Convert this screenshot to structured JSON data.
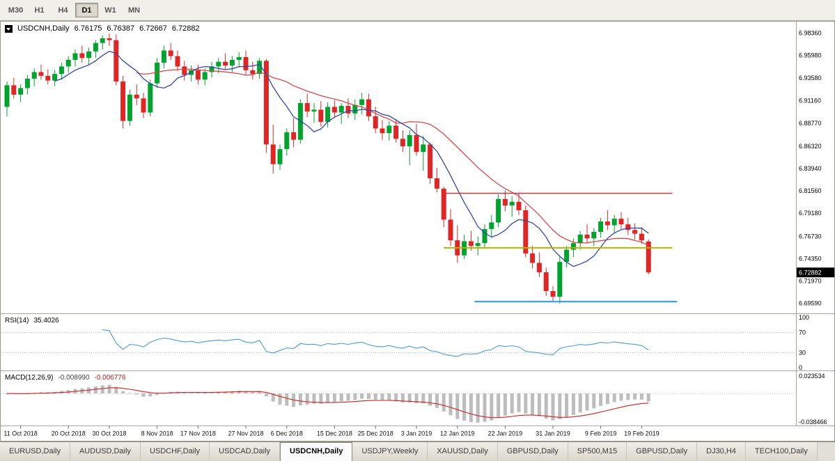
{
  "toolbar": {
    "timeframes": [
      {
        "label": "M30",
        "active": false
      },
      {
        "label": "H1",
        "active": false
      },
      {
        "label": "H4",
        "active": false
      },
      {
        "label": "D1",
        "active": true
      },
      {
        "label": "W1",
        "active": false
      },
      {
        "label": "MN",
        "active": false
      }
    ]
  },
  "chart": {
    "header": {
      "symbol_label": "USDCNH,Daily",
      "open": "6.76175",
      "high": "6.76387",
      "low": "6.72667",
      "close": "6.72882"
    }
  },
  "rsi_panel": {
    "label": "RSI(14)",
    "value": "35.4026"
  },
  "macd_panel": {
    "label": "MACD(12,26,9)",
    "main_value": "-0.008990",
    "signal_value": "-0.006776"
  },
  "tabs": [
    {
      "label": "EURUSD,Daily",
      "active": false
    },
    {
      "label": "AUDUSD,Daily",
      "active": false
    },
    {
      "label": "USDCHF,Daily",
      "active": false
    },
    {
      "label": "USDCAD,Daily",
      "active": false
    },
    {
      "label": "USDCNH,Daily",
      "active": true
    },
    {
      "label": "USDJPY,Weekly",
      "active": false
    },
    {
      "label": "XAUUSD,Daily",
      "active": false
    },
    {
      "label": "GBPUSD,Daily",
      "active": false
    },
    {
      "label": "SP500,M15",
      "active": false
    },
    {
      "label": "GBPUSD,Daily",
      "active": false
    },
    {
      "label": "DJ30,H4",
      "active": false
    },
    {
      "label": "TECH100,Daily",
      "active": false
    }
  ],
  "chart_data": {
    "type": "candlestick-ohlc",
    "symbol": "USDCNH",
    "timeframe": "Daily",
    "last_price": "6.72882",
    "y_axis": {
      "max": 6.995,
      "min": 6.686,
      "tick_labels": [
        "6.98360",
        "6.95980",
        "6.93580",
        "6.91160",
        "6.88770",
        "6.86320",
        "6.83940",
        "6.81560",
        "6.79180",
        "6.76730",
        "6.74350",
        "6.71970",
        "6.69590"
      ]
    },
    "x_tick_labels": [
      "11 Oct 2018",
      "20 Oct 2018",
      "30 Oct 2018",
      "8 Nov 2018",
      "17 Nov 2018",
      "27 Nov 2018",
      "6 Dec 2018",
      "15 Dec 2018",
      "25 Dec 2018",
      "3 Jan 2019",
      "12 Jan 2019",
      "22 Jan 2019",
      "31 Jan 2019",
      "9 Feb 2019",
      "19 Feb 2019"
    ],
    "x_tick_indices": [
      2,
      9,
      15,
      22,
      28,
      35,
      41,
      48,
      54,
      60,
      66,
      73,
      80,
      87,
      93
    ],
    "candles": [
      [
        6.905,
        6.932,
        6.895,
        6.928
      ],
      [
        6.928,
        6.936,
        6.914,
        6.918
      ],
      [
        6.918,
        6.929,
        6.91,
        6.925
      ],
      [
        6.925,
        6.939,
        6.918,
        6.935
      ],
      [
        6.935,
        6.946,
        6.927,
        6.942
      ],
      [
        6.942,
        6.95,
        6.934,
        6.938
      ],
      [
        6.938,
        6.945,
        6.929,
        6.933
      ],
      [
        6.933,
        6.944,
        6.927,
        6.94
      ],
      [
        6.94,
        6.952,
        6.934,
        6.948
      ],
      [
        6.948,
        6.959,
        6.941,
        6.955
      ],
      [
        6.955,
        6.966,
        6.948,
        6.962
      ],
      [
        6.962,
        6.97,
        6.952,
        6.957
      ],
      [
        6.957,
        6.968,
        6.95,
        6.964
      ],
      [
        6.964,
        6.976,
        6.957,
        6.973
      ],
      [
        6.973,
        6.981,
        6.966,
        6.978
      ],
      [
        6.978,
        6.983,
        6.97,
        6.976
      ],
      [
        6.976,
        6.982,
        6.928,
        6.932
      ],
      [
        6.932,
        6.938,
        6.882,
        6.89
      ],
      [
        6.89,
        6.923,
        6.885,
        6.918
      ],
      [
        6.918,
        6.929,
        6.907,
        6.914
      ],
      [
        6.914,
        6.92,
        6.893,
        6.899
      ],
      [
        6.899,
        6.934,
        6.895,
        6.93
      ],
      [
        6.93,
        6.957,
        6.925,
        6.952
      ],
      [
        6.952,
        6.97,
        6.946,
        6.965
      ],
      [
        6.965,
        6.973,
        6.955,
        6.959
      ],
      [
        6.959,
        6.965,
        6.943,
        6.948
      ],
      [
        6.948,
        6.954,
        6.933,
        6.939
      ],
      [
        6.939,
        6.949,
        6.932,
        6.944
      ],
      [
        6.944,
        6.95,
        6.929,
        6.934
      ],
      [
        6.934,
        6.946,
        6.928,
        6.942
      ],
      [
        6.942,
        6.953,
        6.936,
        6.948
      ],
      [
        6.948,
        6.957,
        6.941,
        6.953
      ],
      [
        6.953,
        6.962,
        6.945,
        6.949
      ],
      [
        6.949,
        6.959,
        6.942,
        6.955
      ],
      [
        6.955,
        6.963,
        6.947,
        6.958
      ],
      [
        6.958,
        6.965,
        6.939,
        6.944
      ],
      [
        6.944,
        6.953,
        6.934,
        6.94
      ],
      [
        6.94,
        6.957,
        6.935,
        6.954
      ],
      [
        6.954,
        6.956,
        6.856,
        6.865
      ],
      [
        6.865,
        6.886,
        6.834,
        6.844
      ],
      [
        6.844,
        6.865,
        6.838,
        6.86
      ],
      [
        6.86,
        6.882,
        6.853,
        6.878
      ],
      [
        6.878,
        6.893,
        6.862,
        6.87
      ],
      [
        6.87,
        6.913,
        6.866,
        6.909
      ],
      [
        6.909,
        6.919,
        6.894,
        6.9
      ],
      [
        6.9,
        6.909,
        6.888,
        6.902
      ],
      [
        6.902,
        6.911,
        6.884,
        6.889
      ],
      [
        6.889,
        6.91,
        6.883,
        6.905
      ],
      [
        6.905,
        6.912,
        6.894,
        6.899
      ],
      [
        6.899,
        6.909,
        6.887,
        6.906
      ],
      [
        6.906,
        6.914,
        6.893,
        6.898
      ],
      [
        6.898,
        6.913,
        6.891,
        6.907
      ],
      [
        6.907,
        6.92,
        6.897,
        6.913
      ],
      [
        6.913,
        6.919,
        6.89,
        6.895
      ],
      [
        6.895,
        6.905,
        6.877,
        6.882
      ],
      [
        6.882,
        6.891,
        6.87,
        6.877
      ],
      [
        6.877,
        6.89,
        6.869,
        6.885
      ],
      [
        6.885,
        6.892,
        6.867,
        6.871
      ],
      [
        6.871,
        6.88,
        6.857,
        6.863
      ],
      [
        6.863,
        6.88,
        6.843,
        6.875
      ],
      [
        6.875,
        6.887,
        6.853,
        6.857
      ],
      [
        6.857,
        6.874,
        6.837,
        6.865
      ],
      [
        6.865,
        6.867,
        6.823,
        6.829
      ],
      [
        6.829,
        6.84,
        6.814,
        6.818
      ],
      [
        6.818,
        6.82,
        6.777,
        6.785
      ],
      [
        6.785,
        6.796,
        6.757,
        6.763
      ],
      [
        6.763,
        6.779,
        6.739,
        6.747
      ],
      [
        6.747,
        6.769,
        6.743,
        6.762
      ],
      [
        6.762,
        6.773,
        6.752,
        6.757
      ],
      [
        6.757,
        6.767,
        6.747,
        6.76
      ],
      [
        6.76,
        6.78,
        6.754,
        6.775
      ],
      [
        6.775,
        6.79,
        6.767,
        6.782
      ],
      [
        6.782,
        6.812,
        6.777,
        6.807
      ],
      [
        6.807,
        6.816,
        6.794,
        6.8
      ],
      [
        6.8,
        6.81,
        6.788,
        6.804
      ],
      [
        6.804,
        6.813,
        6.79,
        6.795
      ],
      [
        6.795,
        6.8,
        6.745,
        6.749
      ],
      [
        6.749,
        6.757,
        6.733,
        6.739
      ],
      [
        6.739,
        6.75,
        6.724,
        6.729
      ],
      [
        6.729,
        6.734,
        6.704,
        6.709
      ],
      [
        6.709,
        6.714,
        6.697,
        6.703
      ],
      [
        6.703,
        6.746,
        6.6959,
        6.74
      ],
      [
        6.74,
        6.757,
        6.734,
        6.753
      ],
      [
        6.753,
        6.765,
        6.745,
        6.76
      ],
      [
        6.76,
        6.773,
        6.753,
        6.769
      ],
      [
        6.769,
        6.78,
        6.76,
        6.765
      ],
      [
        6.765,
        6.776,
        6.757,
        6.772
      ],
      [
        6.772,
        6.787,
        6.766,
        6.783
      ],
      [
        6.783,
        6.795,
        6.774,
        6.779
      ],
      [
        6.779,
        6.79,
        6.77,
        6.786
      ],
      [
        6.786,
        6.793,
        6.775,
        6.78
      ],
      [
        6.78,
        6.787,
        6.769,
        6.774
      ],
      [
        6.774,
        6.781,
        6.764,
        6.77
      ],
      [
        6.77,
        6.777,
        6.759,
        6.763
      ],
      [
        6.76175,
        6.76387,
        6.72667,
        6.72882
      ]
    ],
    "overlays": {
      "ma_fast": {
        "type": "sma",
        "period": 8,
        "color": "#3447a0"
      },
      "ma_slow": {
        "type": "sma",
        "period": 20,
        "color": "#d04a4a"
      },
      "hlines": [
        {
          "name": "resistance",
          "price": 6.813,
          "color": "#e02525",
          "width": 1.4,
          "from_index": 64,
          "to_index": 97.5
        },
        {
          "name": "support-mid",
          "price": 6.755,
          "color": "#b5b500",
          "width": 2,
          "from_index": 64,
          "to_index": 97.5
        },
        {
          "name": "support-low",
          "price": 6.6978,
          "color": "#4aa0d8",
          "width": 2.4,
          "from_index": 68.5,
          "to_index": 98.2
        }
      ]
    },
    "indicators": {
      "rsi": {
        "period": 14,
        "current_value": 35.4026,
        "levels": [
          70,
          30
        ],
        "scale_labels": [
          "100",
          "70",
          "30",
          "0"
        ]
      },
      "macd": {
        "fast_period": 12,
        "slow_period": 26,
        "signal_period": 9,
        "main_value": -0.00899,
        "signal_value": -0.006776,
        "scale_max": 0.023534,
        "scale_min": -0.038466,
        "scale_top_label": "0.023534",
        "scale_bottom_label": "-0.038466"
      }
    },
    "colors": {
      "up": "#00a32e",
      "down": "#e02525",
      "ma_fast": "#3447a0",
      "ma_slow": "#d04a4a",
      "rsi_line": "#4d9ad4",
      "macd_hist": "#bdbdbd",
      "macd_signal": "#cc2222"
    }
  }
}
